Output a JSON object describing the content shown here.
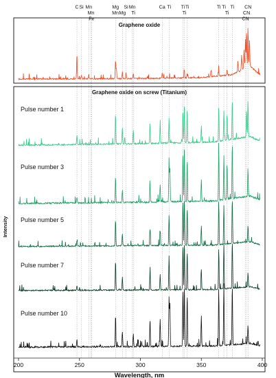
{
  "chart_data": {
    "type": "line",
    "xlabel": "Wavelength, nm",
    "ylabel": "Intensity",
    "xlim": [
      200,
      400
    ],
    "x_ticks": [
      "200",
      "250",
      "300",
      "350",
      "400"
    ],
    "grid": "dotted vertical reference lines at element emission wavelengths",
    "element_markers": [
      {
        "label": "C",
        "x": 247.9,
        "row": 1
      },
      {
        "label": "Si",
        "x": 251.6,
        "row": 1
      },
      {
        "label": "Mn",
        "x": 257.6,
        "row": 1
      },
      {
        "label": "Mn",
        "x": 259.4,
        "row": 2
      },
      {
        "label": "Fe",
        "x": 259.9,
        "row": 3
      },
      {
        "label": "Mg",
        "x": 279.6,
        "row": 1
      },
      {
        "label": "Mn",
        "x": 279.5,
        "row": 2
      },
      {
        "label": "Si",
        "x": 288.2,
        "row": 1
      },
      {
        "label": "Mg",
        "x": 285.2,
        "row": 2
      },
      {
        "label": "Mn",
        "x": 293.3,
        "row": 1
      },
      {
        "label": "Ti",
        "x": 294.2,
        "row": 2
      },
      {
        "label": "Ca",
        "x": 317.9,
        "row": 1
      },
      {
        "label": "Ti",
        "x": 323.5,
        "row": 1
      },
      {
        "label": "Ti",
        "x": 334.9,
        "row": 1
      },
      {
        "label": "Ti",
        "x": 336.1,
        "row": 2
      },
      {
        "label": "Ti",
        "x": 338.4,
        "row": 1
      },
      {
        "label": "Ti",
        "x": 364.3,
        "row": 1
      },
      {
        "label": "Ti",
        "x": 368.5,
        "row": 1
      },
      {
        "label": "Ti",
        "x": 371.1,
        "row": 2
      },
      {
        "label": "Ti",
        "x": 375.4,
        "row": 1
      },
      {
        "label": "CN",
        "x": 388.3,
        "row": 1
      },
      {
        "label": "CN",
        "x": 387.1,
        "row": 2
      },
      {
        "label": "CN",
        "x": 386.2,
        "row": 3
      }
    ],
    "top_panel": {
      "title": "Graphene oxide",
      "series": [
        {
          "color": "#f04a23",
          "peaks": [
            [
              247.9,
              0.52
            ],
            [
              251.6,
              0.08
            ],
            [
              257.6,
              0.09
            ],
            [
              279.6,
              0.38
            ],
            [
              280.3,
              0.22
            ],
            [
              285.2,
              0.15
            ],
            [
              288.2,
              0.14
            ],
            [
              294.2,
              0.1
            ],
            [
              317.9,
              0.12
            ],
            [
              336.1,
              0.16
            ],
            [
              338.4,
              0.1
            ],
            [
              357.9,
              0.12
            ],
            [
              364.3,
              0.1
            ],
            [
              371.1,
              0.12
            ],
            [
              380.0,
              0.22
            ],
            [
              383.0,
              0.3
            ],
            [
              385.0,
              0.4
            ],
            [
              386.2,
              0.62
            ],
            [
              387.1,
              0.78
            ],
            [
              388.3,
              0.85
            ],
            [
              389.5,
              0.55
            ]
          ],
          "baseline": [
            [
              200,
              0.03
            ],
            [
              300,
              0.04
            ],
            [
              350,
              0.06
            ],
            [
              375,
              0.12
            ],
            [
              390,
              0.3
            ],
            [
              398,
              0.12
            ]
          ]
        }
      ]
    },
    "bottom_panel": {
      "title": "Graphene oxide on screw (Titanium)",
      "series": [
        {
          "name": "Pulse number 1",
          "color": "#38c98a",
          "peaks": [
            [
              247.9,
              0.18
            ],
            [
              279.6,
              0.55
            ],
            [
              285.2,
              0.3
            ],
            [
              294.2,
              0.25
            ],
            [
              307.9,
              0.3
            ],
            [
              316.2,
              0.32
            ],
            [
              323.5,
              0.45
            ],
            [
              334.9,
              0.6
            ],
            [
              336.1,
              0.7
            ],
            [
              338.4,
              0.55
            ],
            [
              350.0,
              0.3
            ],
            [
              364.3,
              0.62
            ],
            [
              368.5,
              0.55
            ],
            [
              371.1,
              0.48
            ],
            [
              375.4,
              0.72
            ],
            [
              387.1,
              0.5
            ],
            [
              388.3,
              0.65
            ]
          ],
          "baseline": [
            [
              200,
              0.02
            ],
            [
              300,
              0.05
            ],
            [
              360,
              0.08
            ],
            [
              390,
              0.18
            ],
            [
              398,
              0.1
            ]
          ]
        },
        {
          "name": "Pulse number 3",
          "color": "#1f9e68",
          "peaks": [
            [
              247.9,
              0.1
            ],
            [
              279.6,
              0.42
            ],
            [
              285.2,
              0.2
            ],
            [
              307.9,
              0.3
            ],
            [
              316.2,
              0.28
            ],
            [
              323.5,
              0.62
            ],
            [
              324.2,
              0.55
            ],
            [
              334.9,
              0.8
            ],
            [
              336.1,
              0.9
            ],
            [
              338.4,
              0.7
            ],
            [
              350.0,
              0.35
            ],
            [
              364.3,
              0.85
            ],
            [
              368.5,
              0.7
            ],
            [
              371.1,
              0.6
            ],
            [
              375.4,
              0.9
            ],
            [
              388.3,
              0.45
            ]
          ],
          "baseline": [
            [
              200,
              0.02
            ],
            [
              300,
              0.04
            ],
            [
              360,
              0.06
            ],
            [
              390,
              0.14
            ],
            [
              398,
              0.08
            ]
          ]
        },
        {
          "name": "Pulse number 5",
          "color": "#0f6b44",
          "peaks": [
            [
              247.9,
              0.12
            ],
            [
              279.6,
              0.55
            ],
            [
              285.2,
              0.25
            ],
            [
              307.9,
              0.35
            ],
            [
              316.2,
              0.3
            ],
            [
              323.5,
              0.62
            ],
            [
              334.9,
              0.95
            ],
            [
              336.1,
              1.0
            ],
            [
              338.4,
              0.8
            ],
            [
              350.0,
              0.4
            ],
            [
              364.3,
              0.9
            ],
            [
              368.5,
              0.8
            ],
            [
              375.4,
              0.95
            ],
            [
              388.3,
              0.35
            ]
          ],
          "baseline": [
            [
              200,
              0.02
            ],
            [
              300,
              0.04
            ],
            [
              360,
              0.05
            ],
            [
              390,
              0.12
            ],
            [
              398,
              0.06
            ]
          ]
        },
        {
          "name": "Pulse number 7",
          "color": "#0b3a26",
          "peaks": [
            [
              247.9,
              0.1
            ],
            [
              279.6,
              0.62
            ],
            [
              285.2,
              0.28
            ],
            [
              307.9,
              0.4
            ],
            [
              316.2,
              0.32
            ],
            [
              323.5,
              0.7
            ],
            [
              334.9,
              0.95
            ],
            [
              336.1,
              1.0
            ],
            [
              338.4,
              0.8
            ],
            [
              350.0,
              0.42
            ],
            [
              364.3,
              0.85
            ],
            [
              368.5,
              0.95
            ],
            [
              375.4,
              1.0
            ],
            [
              388.3,
              0.3
            ]
          ],
          "baseline": [
            [
              200,
              0.02
            ],
            [
              300,
              0.03
            ],
            [
              360,
              0.04
            ],
            [
              390,
              0.1
            ],
            [
              398,
              0.05
            ]
          ]
        },
        {
          "name": "Pulse number 10",
          "color": "#111111",
          "peaks": [
            [
              247.9,
              0.12
            ],
            [
              279.6,
              0.5
            ],
            [
              285.2,
              0.25
            ],
            [
              294.2,
              0.2
            ],
            [
              307.9,
              0.45
            ],
            [
              316.2,
              0.45
            ],
            [
              323.5,
              0.8
            ],
            [
              324.2,
              0.7
            ],
            [
              334.9,
              0.95
            ],
            [
              336.1,
              1.0
            ],
            [
              338.4,
              0.85
            ],
            [
              350.0,
              0.5
            ],
            [
              364.3,
              0.92
            ],
            [
              368.5,
              1.0
            ],
            [
              375.4,
              0.98
            ],
            [
              388.3,
              0.3
            ]
          ],
          "baseline": [
            [
              200,
              0.02
            ],
            [
              300,
              0.03
            ],
            [
              360,
              0.04
            ],
            [
              390,
              0.08
            ],
            [
              398,
              0.04
            ]
          ]
        }
      ]
    }
  }
}
